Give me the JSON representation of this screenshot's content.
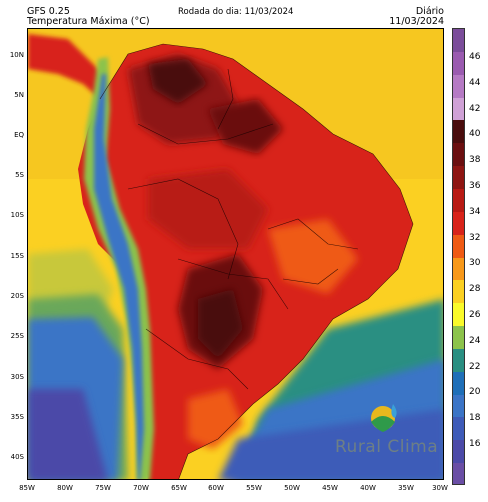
{
  "header": {
    "model": "GFS 0.25",
    "variable": "Temperatura Máxima (°C)",
    "run_label": "Rodada do dia: 11/03/2024",
    "period": "Diário",
    "date": "11/03/2024"
  },
  "axes": {
    "lat_labels": [
      "10N",
      "5N",
      "EQ",
      "5S",
      "10S",
      "15S",
      "20S",
      "25S",
      "30S",
      "35S",
      "40S"
    ],
    "lon_labels": [
      "85W",
      "80W",
      "75W",
      "70W",
      "65W",
      "60W",
      "55W",
      "50W",
      "45W",
      "40W",
      "35W",
      "30W"
    ]
  },
  "colorbar": {
    "labels": [
      "46",
      "44",
      "42",
      "40",
      "38",
      "36",
      "34",
      "32",
      "30",
      "28",
      "26",
      "24",
      "22",
      "20",
      "18",
      "16"
    ],
    "colors": [
      "#7b4d9a",
      "#9a5bb0",
      "#b57ac4",
      "#cfa1d6",
      "#4a0d0d",
      "#6b0f10",
      "#8e1512",
      "#b81a14",
      "#d8231a",
      "#ef5a14",
      "#f7981a",
      "#fbd022",
      "#fafa2a",
      "#8cc34b",
      "#2a8f82",
      "#1f6fb8",
      "#3b74c6",
      "#3e5bb8",
      "#4c4aa8",
      "#6a4ea5"
    ]
  },
  "logo": {
    "text": "Rural Clima"
  }
}
